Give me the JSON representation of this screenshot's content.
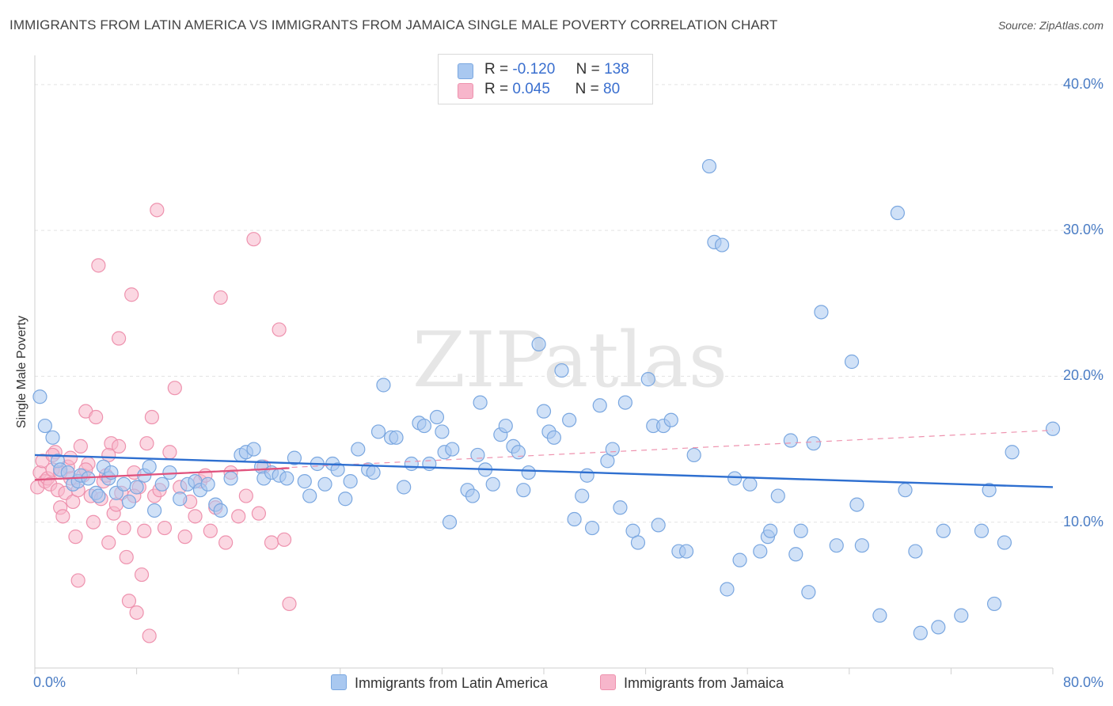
{
  "title": "IMMIGRANTS FROM LATIN AMERICA VS IMMIGRANTS FROM JAMAICA SINGLE MALE POVERTY CORRELATION CHART",
  "source": "Source: ZipAtlas.com",
  "watermark": "ZIPatlas",
  "legend_top": {
    "rows": [
      {
        "r_label": "R =",
        "r_value": "-0.120",
        "n_label": "N =",
        "n_value": "138",
        "color": "#a9c8f0"
      },
      {
        "r_label": "R =",
        "r_value": "0.045",
        "n_label": "N =",
        "n_value": "80",
        "color": "#f7b6cb"
      }
    ]
  },
  "chart_data": {
    "type": "scatter",
    "title": "IMMIGRANTS FROM LATIN AMERICA VS IMMIGRANTS FROM JAMAICA SINGLE MALE POVERTY CORRELATION CHART",
    "xlabel": "",
    "ylabel": "Single Male Poverty",
    "xlim": [
      0,
      80
    ],
    "ylim": [
      0,
      42
    ],
    "x_ticks": [
      "0.0%",
      "80.0%"
    ],
    "y_ticks": [
      {
        "value": 10,
        "label": "10.0%"
      },
      {
        "value": 20,
        "label": "20.0%"
      },
      {
        "value": 30,
        "label": "30.0%"
      },
      {
        "value": 40,
        "label": "40.0%"
      }
    ],
    "grid": true,
    "legend_position": "bottom",
    "series": [
      {
        "name": "Immigrants from Latin America",
        "color": "#7aa7e0",
        "fill": "#a9c8f0",
        "trend": {
          "x": [
            0,
            80
          ],
          "y": [
            14.6,
            12.4
          ]
        },
        "points": [
          [
            0.4,
            18.6
          ],
          [
            0.8,
            16.6
          ],
          [
            1.4,
            15.8
          ],
          [
            1.8,
            14.2
          ],
          [
            2.0,
            13.6
          ],
          [
            2.6,
            13.4
          ],
          [
            3.0,
            12.6
          ],
          [
            3.4,
            12.8
          ],
          [
            3.6,
            13.2
          ],
          [
            4.2,
            13.0
          ],
          [
            4.8,
            12.0
          ],
          [
            5.0,
            11.8
          ],
          [
            5.4,
            13.8
          ],
          [
            5.8,
            13.0
          ],
          [
            6.0,
            13.4
          ],
          [
            6.4,
            12.0
          ],
          [
            7.0,
            12.6
          ],
          [
            7.4,
            11.4
          ],
          [
            8.0,
            12.4
          ],
          [
            8.6,
            13.2
          ],
          [
            9.0,
            13.8
          ],
          [
            9.4,
            10.8
          ],
          [
            10.0,
            12.6
          ],
          [
            10.6,
            13.4
          ],
          [
            11.4,
            11.6
          ],
          [
            12.0,
            12.6
          ],
          [
            12.6,
            12.8
          ],
          [
            13.0,
            12.2
          ],
          [
            13.6,
            12.6
          ],
          [
            14.2,
            11.2
          ],
          [
            14.6,
            10.8
          ],
          [
            15.4,
            13.0
          ],
          [
            16.2,
            14.6
          ],
          [
            16.6,
            14.8
          ],
          [
            17.2,
            15.0
          ],
          [
            17.8,
            13.8
          ],
          [
            18.0,
            13.0
          ],
          [
            18.6,
            13.4
          ],
          [
            19.2,
            13.2
          ],
          [
            19.8,
            13.0
          ],
          [
            20.4,
            14.4
          ],
          [
            21.2,
            12.8
          ],
          [
            21.6,
            11.8
          ],
          [
            22.2,
            14.0
          ],
          [
            22.8,
            12.6
          ],
          [
            23.4,
            14.0
          ],
          [
            23.8,
            13.6
          ],
          [
            24.4,
            11.6
          ],
          [
            24.8,
            12.8
          ],
          [
            25.4,
            15.0
          ],
          [
            26.2,
            13.6
          ],
          [
            26.6,
            13.4
          ],
          [
            27.0,
            16.2
          ],
          [
            27.4,
            19.4
          ],
          [
            28.0,
            15.8
          ],
          [
            28.4,
            15.8
          ],
          [
            29.0,
            12.4
          ],
          [
            29.6,
            14.0
          ],
          [
            30.2,
            16.8
          ],
          [
            30.6,
            16.6
          ],
          [
            31.0,
            14.0
          ],
          [
            31.6,
            17.2
          ],
          [
            32.0,
            16.2
          ],
          [
            32.6,
            10.0
          ],
          [
            32.2,
            14.8
          ],
          [
            32.8,
            15.0
          ],
          [
            34.0,
            12.2
          ],
          [
            34.4,
            11.8
          ],
          [
            34.8,
            14.6
          ],
          [
            35.0,
            18.2
          ],
          [
            36.0,
            12.6
          ],
          [
            36.6,
            16.0
          ],
          [
            37.0,
            16.6
          ],
          [
            37.6,
            15.2
          ],
          [
            38.0,
            14.8
          ],
          [
            38.4,
            12.2
          ],
          [
            38.8,
            13.4
          ],
          [
            39.6,
            22.2
          ],
          [
            40.0,
            17.6
          ],
          [
            40.4,
            16.2
          ],
          [
            40.8,
            15.8
          ],
          [
            41.4,
            20.4
          ],
          [
            42.0,
            17.0
          ],
          [
            42.4,
            10.2
          ],
          [
            43.0,
            11.8
          ],
          [
            43.4,
            13.2
          ],
          [
            43.8,
            9.6
          ],
          [
            44.4,
            18.0
          ],
          [
            45.0,
            14.2
          ],
          [
            45.4,
            15.0
          ],
          [
            46.0,
            11.0
          ],
          [
            46.4,
            18.2
          ],
          [
            47.0,
            9.4
          ],
          [
            47.4,
            8.6
          ],
          [
            48.2,
            19.8
          ],
          [
            48.6,
            16.6
          ],
          [
            49.0,
            9.8
          ],
          [
            49.4,
            16.6
          ],
          [
            50.0,
            17.0
          ],
          [
            50.6,
            8.0
          ],
          [
            51.2,
            8.0
          ],
          [
            51.8,
            14.6
          ],
          [
            53.0,
            34.4
          ],
          [
            53.4,
            29.2
          ],
          [
            54.0,
            29.0
          ],
          [
            54.4,
            5.4
          ],
          [
            55.0,
            13.0
          ],
          [
            55.4,
            7.4
          ],
          [
            56.2,
            12.6
          ],
          [
            57.0,
            8.0
          ],
          [
            57.6,
            9.0
          ],
          [
            57.8,
            9.4
          ],
          [
            58.4,
            11.8
          ],
          [
            59.4,
            15.6
          ],
          [
            59.8,
            7.8
          ],
          [
            60.2,
            9.4
          ],
          [
            60.8,
            5.2
          ],
          [
            61.2,
            15.4
          ],
          [
            61.8,
            24.4
          ],
          [
            63.0,
            8.4
          ],
          [
            64.2,
            21.0
          ],
          [
            64.6,
            11.2
          ],
          [
            65.0,
            8.4
          ],
          [
            66.4,
            3.6
          ],
          [
            67.8,
            31.2
          ],
          [
            68.4,
            12.2
          ],
          [
            69.2,
            8.0
          ],
          [
            69.6,
            2.4
          ],
          [
            71.0,
            2.8
          ],
          [
            71.4,
            9.4
          ],
          [
            72.8,
            3.6
          ],
          [
            74.4,
            9.4
          ],
          [
            75.0,
            12.2
          ],
          [
            75.4,
            4.4
          ],
          [
            76.2,
            8.6
          ],
          [
            76.8,
            14.8
          ],
          [
            80.0,
            16.4
          ],
          [
            35.4,
            13.6
          ]
        ]
      },
      {
        "name": "Immigrants from Jamaica",
        "color": "#ee92ae",
        "fill": "#f7b6cb",
        "trend": {
          "x": [
            0,
            20
          ],
          "y": [
            12.9,
            13.7
          ]
        },
        "trend_extended": {
          "x": [
            0,
            80
          ],
          "y": [
            12.9,
            16.3
          ]
        },
        "points": [
          [
            0.2,
            12.4
          ],
          [
            0.4,
            13.4
          ],
          [
            0.6,
            14.2
          ],
          [
            0.8,
            12.8
          ],
          [
            1.0,
            13.0
          ],
          [
            1.2,
            12.6
          ],
          [
            1.4,
            13.6
          ],
          [
            1.6,
            14.8
          ],
          [
            1.8,
            12.2
          ],
          [
            2.0,
            11.0
          ],
          [
            2.2,
            10.4
          ],
          [
            2.4,
            12.0
          ],
          [
            2.6,
            13.8
          ],
          [
            2.8,
            14.4
          ],
          [
            3.0,
            11.4
          ],
          [
            3.2,
            9.0
          ],
          [
            3.4,
            6.0
          ],
          [
            3.6,
            15.2
          ],
          [
            3.8,
            13.2
          ],
          [
            4.0,
            17.6
          ],
          [
            4.2,
            14.0
          ],
          [
            4.4,
            11.8
          ],
          [
            4.6,
            10.0
          ],
          [
            4.8,
            17.2
          ],
          [
            5.0,
            27.6
          ],
          [
            5.2,
            11.6
          ],
          [
            5.4,
            12.8
          ],
          [
            5.6,
            13.2
          ],
          [
            5.8,
            8.6
          ],
          [
            6.0,
            15.4
          ],
          [
            6.2,
            10.6
          ],
          [
            6.4,
            11.2
          ],
          [
            6.6,
            22.6
          ],
          [
            6.8,
            12.0
          ],
          [
            7.0,
            9.6
          ],
          [
            7.2,
            7.6
          ],
          [
            7.4,
            4.6
          ],
          [
            7.6,
            25.6
          ],
          [
            7.8,
            13.4
          ],
          [
            8.0,
            3.8
          ],
          [
            8.2,
            12.4
          ],
          [
            8.4,
            6.4
          ],
          [
            8.6,
            9.4
          ],
          [
            8.8,
            15.4
          ],
          [
            9.0,
            2.2
          ],
          [
            9.2,
            17.2
          ],
          [
            9.4,
            11.8
          ],
          [
            9.6,
            31.4
          ],
          [
            9.8,
            12.2
          ],
          [
            10.2,
            9.6
          ],
          [
            10.6,
            14.8
          ],
          [
            11.0,
            19.2
          ],
          [
            11.4,
            12.4
          ],
          [
            11.8,
            9.0
          ],
          [
            12.2,
            11.4
          ],
          [
            12.6,
            10.4
          ],
          [
            13.0,
            12.8
          ],
          [
            13.4,
            13.2
          ],
          [
            13.8,
            9.4
          ],
          [
            14.2,
            11.0
          ],
          [
            14.6,
            25.4
          ],
          [
            15.0,
            8.6
          ],
          [
            15.4,
            13.4
          ],
          [
            16.0,
            10.4
          ],
          [
            16.6,
            11.8
          ],
          [
            17.2,
            29.4
          ],
          [
            17.6,
            10.6
          ],
          [
            18.0,
            13.8
          ],
          [
            18.6,
            8.6
          ],
          [
            19.2,
            23.2
          ],
          [
            19.6,
            8.8
          ],
          [
            20.0,
            4.4
          ],
          [
            1.4,
            14.6
          ],
          [
            2.8,
            13.0
          ],
          [
            3.4,
            12.2
          ],
          [
            4.0,
            13.6
          ],
          [
            5.8,
            14.6
          ],
          [
            6.6,
            15.2
          ],
          [
            7.8,
            11.8
          ],
          [
            2.0,
            13.4
          ]
        ]
      }
    ]
  }
}
